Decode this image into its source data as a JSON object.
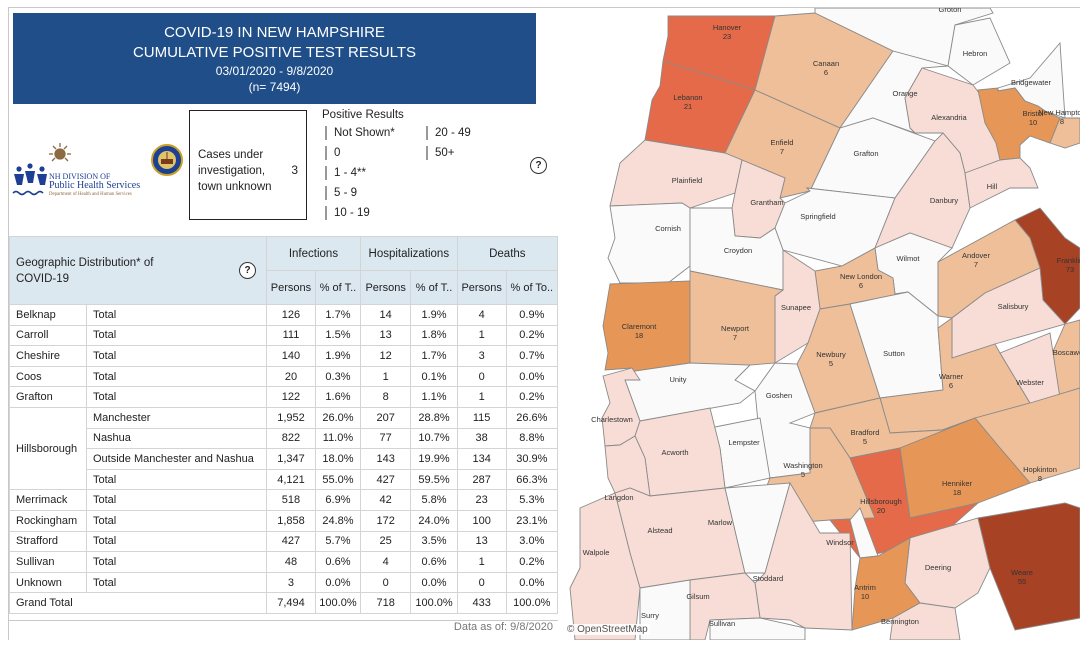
{
  "header": {
    "line1": "COVID-19 IN NEW HAMPSHIRE",
    "line2": "CUMULATIVE POSITIVE TEST RESULTS",
    "date_range": "03/01/2020 - 9/8/2020",
    "n": "(n= 7494)"
  },
  "logo": {
    "line1": "NH DIVISION OF",
    "line2": "Public Health Services",
    "line3": "Department of Health and Human Services"
  },
  "cases_unknown": {
    "label": "Cases under investigation, town unknown",
    "value": "3"
  },
  "legend": {
    "title": "Positive Results",
    "items": [
      {
        "label": "Not Shown*",
        "color": "#c0c0c0"
      },
      {
        "label": "0",
        "color": "#fafafa"
      },
      {
        "label": "1 - 4**",
        "color": "#f7ddd6"
      },
      {
        "label": "5 - 9",
        "color": "#eebf98"
      },
      {
        "label": "10 - 19",
        "color": "#e69656"
      },
      {
        "label": "20 - 49",
        "color": "#e46a49"
      },
      {
        "label": "50+",
        "color": "#a74225"
      }
    ]
  },
  "help_icon": "?",
  "table": {
    "title": "Geographic Distribution* of COVID-19",
    "groups": [
      "Infections",
      "Hospitalizations",
      "Deaths"
    ],
    "subheaders": [
      "Persons",
      "% of T..",
      "Persons",
      "% of T..",
      "Persons",
      "% of To.."
    ],
    "rows": [
      {
        "county": "Belknap",
        "region": "Total",
        "values": [
          "126",
          "1.7%",
          "14",
          "1.9%",
          "4",
          "0.9%"
        ]
      },
      {
        "county": "Carroll",
        "region": "Total",
        "values": [
          "111",
          "1.5%",
          "13",
          "1.8%",
          "1",
          "0.2%"
        ]
      },
      {
        "county": "Cheshire",
        "region": "Total",
        "values": [
          "140",
          "1.9%",
          "12",
          "1.7%",
          "3",
          "0.7%"
        ]
      },
      {
        "county": "Coos",
        "region": "Total",
        "values": [
          "20",
          "0.3%",
          "1",
          "0.1%",
          "0",
          "0.0%"
        ]
      },
      {
        "county": "Grafton",
        "region": "Total",
        "values": [
          "122",
          "1.6%",
          "8",
          "1.1%",
          "1",
          "0.2%"
        ]
      },
      {
        "county": "Hillsborough",
        "region": "Manchester",
        "values": [
          "1,952",
          "26.0%",
          "207",
          "28.8%",
          "115",
          "26.6%"
        ]
      },
      {
        "county": "",
        "region": "Nashua",
        "values": [
          "822",
          "11.0%",
          "77",
          "10.7%",
          "38",
          "8.8%"
        ]
      },
      {
        "county": "",
        "region": "Outside Manchester and Nashua",
        "values": [
          "1,347",
          "18.0%",
          "143",
          "19.9%",
          "134",
          "30.9%"
        ]
      },
      {
        "county": "",
        "region": "Total",
        "values": [
          "4,121",
          "55.0%",
          "427",
          "59.5%",
          "287",
          "66.3%"
        ]
      },
      {
        "county": "Merrimack",
        "region": "Total",
        "values": [
          "518",
          "6.9%",
          "42",
          "5.8%",
          "23",
          "5.3%"
        ]
      },
      {
        "county": "Rockingham",
        "region": "Total",
        "values": [
          "1,858",
          "24.8%",
          "172",
          "24.0%",
          "100",
          "23.1%"
        ]
      },
      {
        "county": "Strafford",
        "region": "Total",
        "values": [
          "427",
          "5.7%",
          "25",
          "3.5%",
          "13",
          "3.0%"
        ]
      },
      {
        "county": "Sullivan",
        "region": "Total",
        "values": [
          "48",
          "0.6%",
          "4",
          "0.6%",
          "1",
          "0.2%"
        ]
      },
      {
        "county": "Unknown",
        "region": "Total",
        "values": [
          "3",
          "0.0%",
          "0",
          "0.0%",
          "0",
          "0.0%"
        ]
      }
    ],
    "grand_total": {
      "label": "Grand Total",
      "values": [
        "7,494",
        "100.0%",
        "718",
        "100.0%",
        "433",
        "100.0%"
      ]
    }
  },
  "data_as_of": "Data as of:  9/8/2020",
  "map": {
    "attribution": "© OpenStreetMap",
    "towns": [
      {
        "name": "Hanover",
        "count": "23",
        "bin": "20 - 49"
      },
      {
        "name": "Lebanon",
        "count": "21",
        "bin": "20 - 49"
      },
      {
        "name": "Canaan",
        "count": "6",
        "bin": "5 - 9"
      },
      {
        "name": "Enfield",
        "count": "7",
        "bin": "5 - 9"
      },
      {
        "name": "Groton",
        "count": "",
        "bin": "0"
      },
      {
        "name": "Hebron",
        "count": "",
        "bin": "0"
      },
      {
        "name": "Orange",
        "count": "",
        "bin": "0"
      },
      {
        "name": "Alexandria",
        "count": "",
        "bin": "1 - 4**"
      },
      {
        "name": "Bridgewater",
        "count": "",
        "bin": "0"
      },
      {
        "name": "Bristol",
        "count": "10",
        "bin": "10 - 19"
      },
      {
        "name": "New Hampton",
        "count": "8",
        "bin": "5 - 9"
      },
      {
        "name": "Grafton",
        "count": "",
        "bin": "0"
      },
      {
        "name": "Plainfield",
        "count": "",
        "bin": "1 - 4**"
      },
      {
        "name": "Grantham",
        "count": "",
        "bin": "1 - 4**"
      },
      {
        "name": "Springfield",
        "count": "",
        "bin": "0"
      },
      {
        "name": "Danbury",
        "count": "",
        "bin": "1 - 4**"
      },
      {
        "name": "Hill",
        "count": "",
        "bin": "1 - 4**"
      },
      {
        "name": "Franklin",
        "count": "73",
        "bin": "50+"
      },
      {
        "name": "Cornish",
        "count": "",
        "bin": "0"
      },
      {
        "name": "Croydon",
        "count": "",
        "bin": "0"
      },
      {
        "name": "Wilmot",
        "count": "",
        "bin": "0"
      },
      {
        "name": "Andover",
        "count": "7",
        "bin": "5 - 9"
      },
      {
        "name": "New London",
        "count": "6",
        "bin": "5 - 9"
      },
      {
        "name": "Sunapee",
        "count": "",
        "bin": "1 - 4**"
      },
      {
        "name": "Claremont",
        "count": "18",
        "bin": "10 - 19"
      },
      {
        "name": "Newport",
        "count": "7",
        "bin": "5 - 9"
      },
      {
        "name": "Salisbury",
        "count": "",
        "bin": "1 - 4**"
      },
      {
        "name": "Newbury",
        "count": "5",
        "bin": "5 - 9"
      },
      {
        "name": "Sutton",
        "count": "",
        "bin": "0"
      },
      {
        "name": "Boscawen",
        "count": "",
        "bin": "5 - 9"
      },
      {
        "name": "Unity",
        "count": "",
        "bin": "0"
      },
      {
        "name": "Goshen",
        "count": "",
        "bin": "0"
      },
      {
        "name": "Warner",
        "count": "6",
        "bin": "5 - 9"
      },
      {
        "name": "Webster",
        "count": "",
        "bin": "1 - 4**"
      },
      {
        "name": "Charlestown",
        "count": "",
        "bin": "1 - 4**"
      },
      {
        "name": "Lempster",
        "count": "",
        "bin": "0"
      },
      {
        "name": "Bradford",
        "count": "5",
        "bin": "5 - 9"
      },
      {
        "name": "Acworth",
        "count": "",
        "bin": "1 - 4**"
      },
      {
        "name": "Washington",
        "count": "5",
        "bin": "5 - 9"
      },
      {
        "name": "Hopkinton",
        "count": "8",
        "bin": "5 - 9"
      },
      {
        "name": "Henniker",
        "count": "18",
        "bin": "10 - 19"
      },
      {
        "name": "Langdon",
        "count": "",
        "bin": "1 - 4**"
      },
      {
        "name": "Hillsborough",
        "count": "20",
        "bin": "20 - 49"
      },
      {
        "name": "Alstead",
        "count": "",
        "bin": "1 - 4**"
      },
      {
        "name": "Marlow",
        "count": "",
        "bin": "0"
      },
      {
        "name": "Windsor",
        "count": "",
        "bin": "0"
      },
      {
        "name": "Walpole",
        "count": "",
        "bin": "1 - 4**"
      },
      {
        "name": "Stoddard",
        "count": "",
        "bin": "1 - 4**"
      },
      {
        "name": "Deering",
        "count": "",
        "bin": "1 - 4**"
      },
      {
        "name": "Weare",
        "count": "55",
        "bin": "50+"
      },
      {
        "name": "Antrim",
        "count": "10",
        "bin": "10 - 19"
      },
      {
        "name": "Gilsum",
        "count": "",
        "bin": "1 - 4**"
      },
      {
        "name": "Surry",
        "count": "",
        "bin": "0"
      },
      {
        "name": "Sullivan",
        "count": "",
        "bin": "0"
      },
      {
        "name": "Bennington",
        "count": "",
        "bin": "1 - 4**"
      }
    ]
  }
}
